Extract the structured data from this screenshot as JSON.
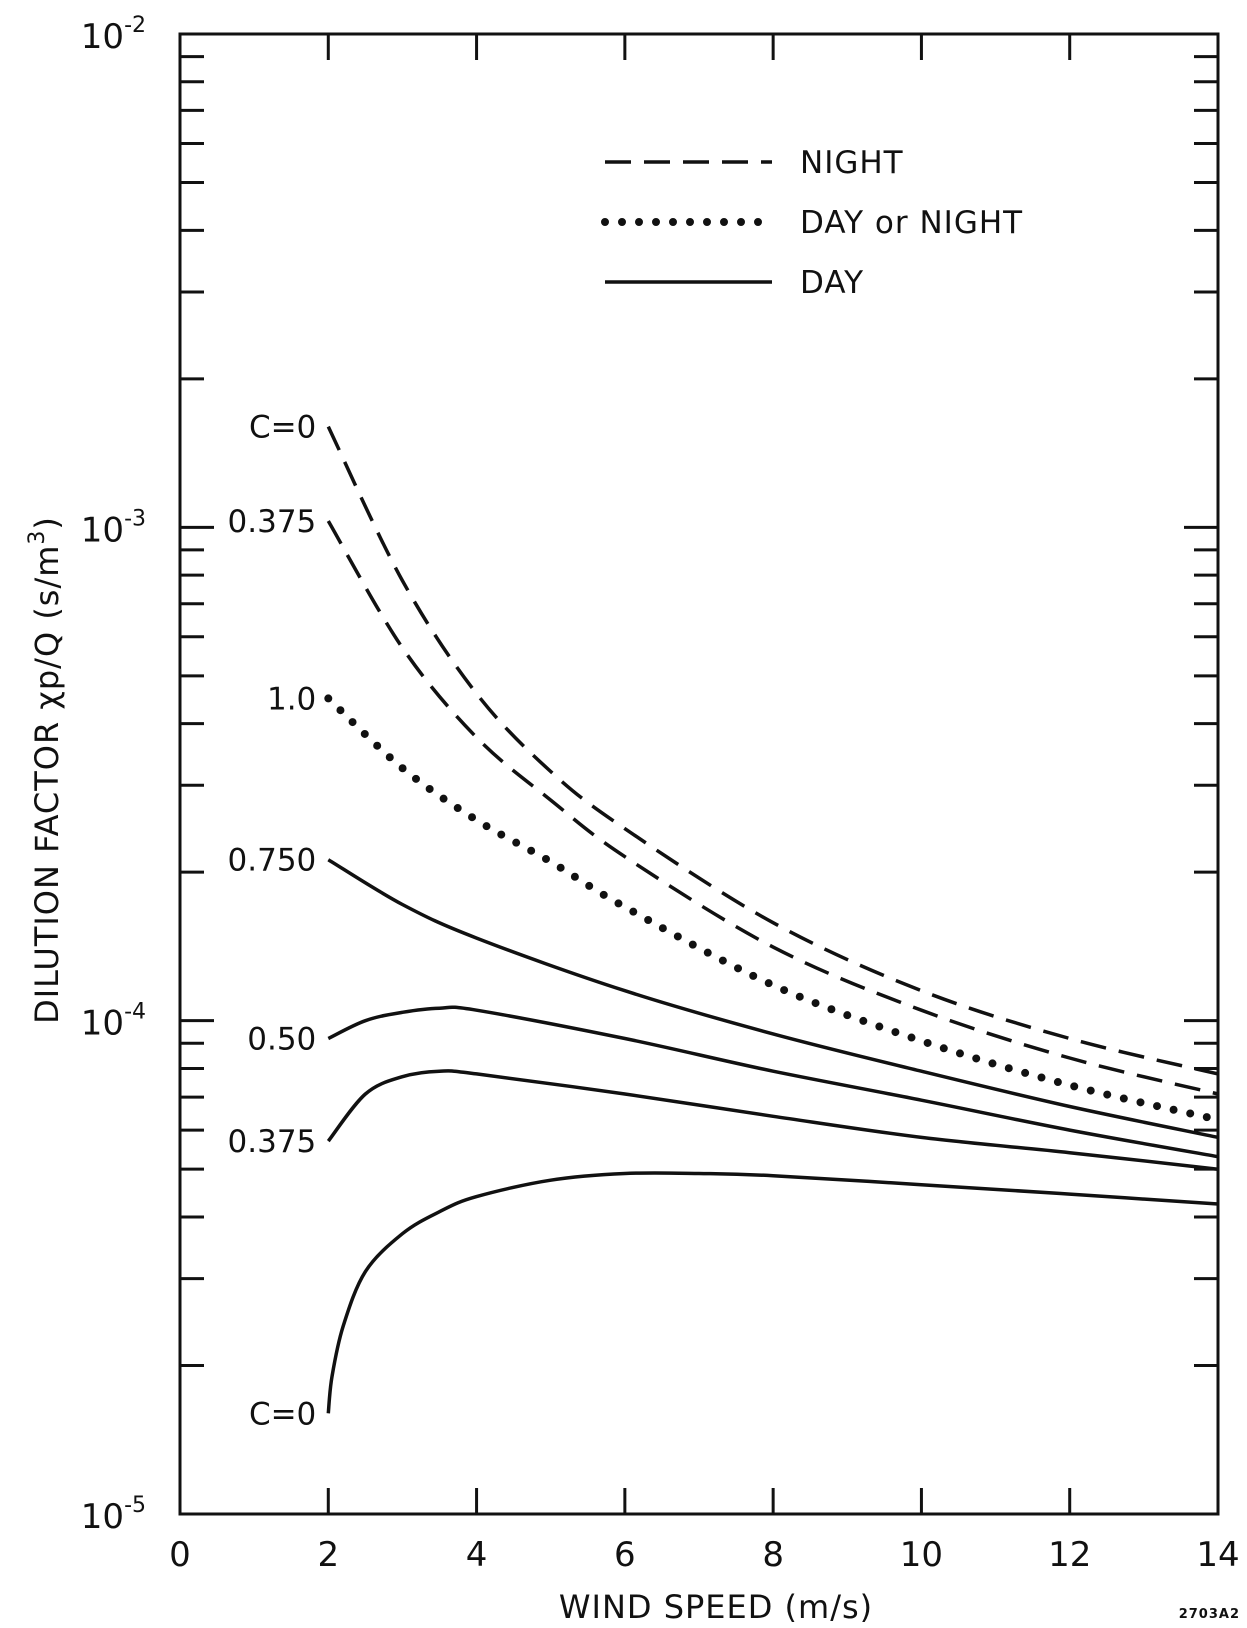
{
  "chart_data": {
    "type": "line",
    "xlabel": "WIND SPEED (m/s)",
    "ylabel_parts": {
      "main": "DILUTION FACTOR χp/Q (s/m",
      "exp": "3",
      "close": ")"
    },
    "figure_id": "2703A2",
    "x_range": [
      0,
      14
    ],
    "y_range": [
      1e-05,
      0.01
    ],
    "y_scale": "log",
    "x_ticks": [
      {
        "value": 0,
        "label": "0"
      },
      {
        "value": 2,
        "label": "2"
      },
      {
        "value": 4,
        "label": "4"
      },
      {
        "value": 6,
        "label": "6"
      },
      {
        "value": 8,
        "label": "8"
      },
      {
        "value": 10,
        "label": "10"
      },
      {
        "value": 12,
        "label": "12"
      },
      {
        "value": 14,
        "label": "14"
      }
    ],
    "y_decade_labels": [
      {
        "value": 1e-05,
        "base": "10",
        "exp": "-5"
      },
      {
        "value": 0.0001,
        "base": "10",
        "exp": "-4"
      },
      {
        "value": 0.001,
        "base": "10",
        "exp": "-3"
      },
      {
        "value": 0.01,
        "base": "10",
        "exp": "-2"
      }
    ],
    "grid": false,
    "legend_position": "top-right",
    "legend": [
      {
        "style": "dashed",
        "label": "NIGHT"
      },
      {
        "style": "dotted",
        "label": "DAY or NIGHT"
      },
      {
        "style": "solid",
        "label": "DAY"
      }
    ],
    "series": [
      {
        "label": "C=0",
        "style": "dashed",
        "x": [
          2,
          3,
          4,
          5,
          6,
          8,
          10,
          12,
          14
        ],
        "y": [
          0.0016,
          0.00078,
          0.00046,
          0.00032,
          0.000245,
          0.000158,
          0.000115,
          9.2e-05,
          7.8e-05
        ]
      },
      {
        "label": "0.375",
        "style": "dashed",
        "x": [
          2,
          3,
          4,
          5,
          6,
          8,
          10,
          12,
          14
        ],
        "y": [
          0.00103,
          0.00057,
          0.000375,
          0.00028,
          0.000215,
          0.000141,
          0.000105,
          8.4e-05,
          7.1e-05
        ]
      },
      {
        "label": "1.0",
        "style": "dotted",
        "x": [
          2,
          3,
          4,
          5,
          6,
          8,
          10,
          12,
          14
        ],
        "y": [
          0.00045,
          0.000325,
          0.000255,
          0.00021,
          0.00017,
          0.000118,
          9.1e-05,
          7.4e-05,
          6.3e-05
        ]
      },
      {
        "label": "0.750",
        "style": "solid",
        "x": [
          2,
          3,
          4,
          6,
          8,
          10,
          12,
          14
        ],
        "y": [
          0.000212,
          0.000172,
          0.000147,
          0.000115,
          9.4e-05,
          7.9e-05,
          6.7e-05,
          5.8e-05
        ]
      },
      {
        "label": "0.50",
        "style": "solid",
        "x": [
          2,
          2.5,
          3,
          3.5,
          4,
          6,
          8,
          10,
          12,
          14
        ],
        "y": [
          9.2e-05,
          0.0001,
          0.000104,
          0.000106,
          0.000105,
          9.2e-05,
          7.9e-05,
          6.9e-05,
          6e-05,
          5.3e-05
        ]
      },
      {
        "label": "0.375",
        "style": "solid",
        "x": [
          2,
          2.5,
          3,
          3.5,
          4,
          6,
          8,
          10,
          12,
          14
        ],
        "y": [
          5.7e-05,
          7.1e-05,
          7.7e-05,
          7.9e-05,
          7.8e-05,
          7.1e-05,
          6.4e-05,
          5.8e-05,
          5.4e-05,
          5e-05
        ]
      },
      {
        "label": "C=0",
        "style": "solid",
        "x": [
          2,
          2.05,
          2.2,
          2.5,
          3,
          3.5,
          4,
          5,
          6,
          7,
          8,
          10,
          12,
          14
        ],
        "y": [
          1.6e-05,
          1.9e-05,
          2.4e-05,
          3.1e-05,
          3.7e-05,
          4.1e-05,
          4.4e-05,
          4.75e-05,
          4.9e-05,
          4.9e-05,
          4.85e-05,
          4.65e-05,
          4.45e-05,
          4.25e-05
        ]
      }
    ]
  }
}
